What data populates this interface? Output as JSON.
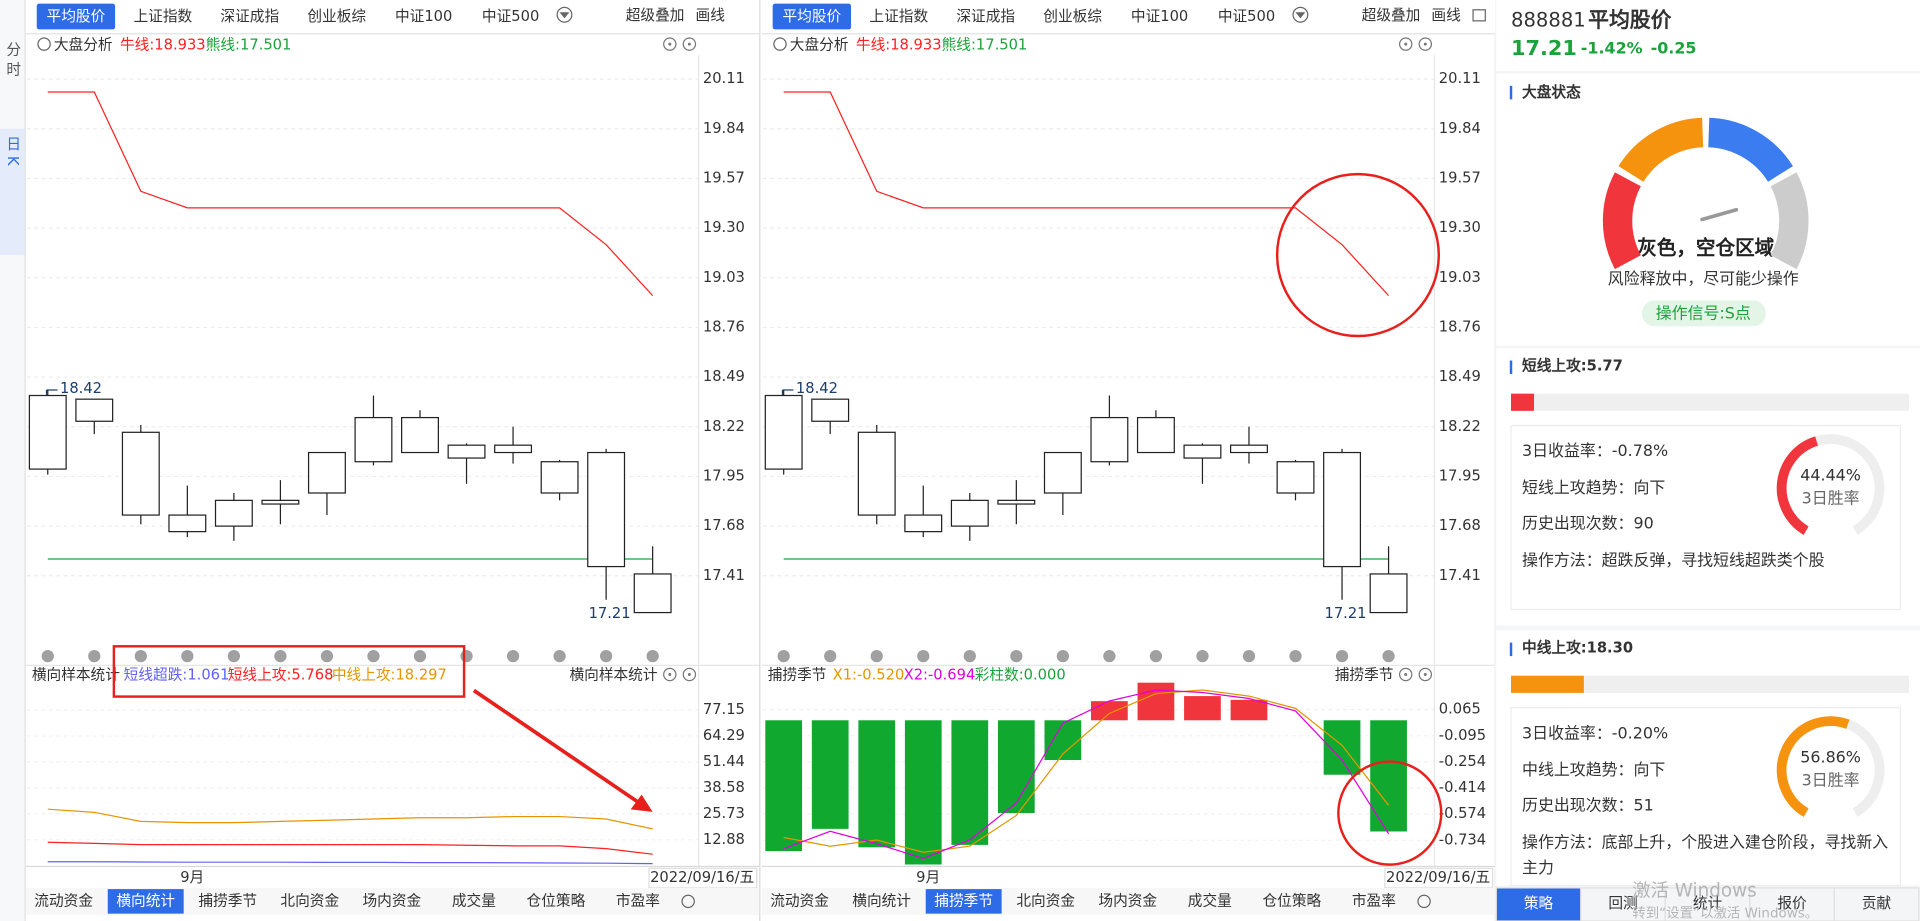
{
  "side_tabs": [
    "分时",
    "日K"
  ],
  "side_active": 1,
  "top_tabs": [
    "平均股价",
    "上证指数",
    "深证成指",
    "创业板综",
    "中证100",
    "中证500"
  ],
  "top_active": 0,
  "top_tools": [
    "超级叠加",
    "画线"
  ],
  "kline": {
    "title": "大盘分析",
    "legend": [
      {
        "text": "牛线:18.933",
        "color": "#ff2020"
      },
      {
        "text": "熊线:17.501",
        "color": "#1aa33b"
      }
    ],
    "ylim": [
      17.04,
      20.24
    ],
    "yticks": [
      20.11,
      19.84,
      19.57,
      {
        "value": 19.3,
        "label": "19.30"
      },
      19.03,
      18.76,
      18.49,
      18.22,
      17.95,
      17.68,
      17.41
    ],
    "grid": true,
    "candle_color": "#222222",
    "candles": [
      {
        "open": 17.99,
        "high": 18.42,
        "low": 17.96,
        "close": 18.39
      },
      {
        "open": 18.25,
        "high": 18.37,
        "low": 18.18,
        "close": 18.37
      },
      {
        "open": 18.19,
        "high": 18.23,
        "low": 17.69,
        "close": 17.74
      },
      {
        "open": 17.65,
        "high": 17.9,
        "low": 17.62,
        "close": 17.74
      },
      {
        "open": 17.68,
        "high": 17.86,
        "low": 17.6,
        "close": 17.82
      },
      {
        "open": 17.8,
        "high": 17.93,
        "low": 17.69,
        "close": 17.82
      },
      {
        "open": 17.86,
        "high": 18.08,
        "low": 17.74,
        "close": 18.08
      },
      {
        "open": 18.03,
        "high": 18.39,
        "low": 18.01,
        "close": 18.27
      },
      {
        "open": 18.27,
        "high": 18.31,
        "low": 18.08,
        "close": 18.08
      },
      {
        "open": 18.12,
        "high": 18.13,
        "low": 17.91,
        "close": 18.05
      },
      {
        "open": 18.08,
        "high": 18.22,
        "low": 18.02,
        "close": 18.12
      },
      {
        "open": 18.03,
        "high": 18.04,
        "low": 17.82,
        "close": 17.86
      },
      {
        "open": 18.08,
        "high": 18.1,
        "low": 17.28,
        "close": 17.46
      },
      {
        "open": 17.42,
        "high": 17.57,
        "low": 17.21,
        "close": 17.21
      }
    ],
    "bull": [
      20.04,
      20.04,
      19.5,
      19.41,
      19.41,
      19.41,
      19.41,
      19.41,
      19.41,
      19.41,
      19.41,
      19.41,
      19.21,
      18.933
    ],
    "bear": [
      17.501,
      17.501,
      17.501,
      17.501,
      17.501,
      17.501,
      17.501,
      17.501,
      17.501,
      17.501,
      17.501,
      17.501,
      17.501,
      17.501
    ]
  },
  "xaxis": {
    "month": "9月",
    "date": "2022/09/16/五"
  },
  "bottom_tabs": [
    "流动资金",
    "横向统计",
    "捕捞季节",
    "北向资金",
    "场内资金",
    "成交量",
    "仓位策略",
    "市盈率"
  ],
  "lower_left": {
    "type": "line",
    "title": "横向样本统计",
    "active_tab": 1,
    "ylim": [
      0,
      87.5
    ],
    "yticks": [
      77.15,
      64.29,
      51.44,
      38.58,
      25.73,
      12.88
    ],
    "series": [
      {
        "name": "短线超跌:1.061",
        "color": "#6060ff",
        "values": [
          2.0,
          2.0,
          1.9,
          1.8,
          1.8,
          1.8,
          1.7,
          1.7,
          1.6,
          1.6,
          1.5,
          1.4,
          1.3,
          1.061
        ]
      },
      {
        "name": "短线上攻:5.768",
        "color": "#ff2020",
        "values": [
          11.7,
          11.1,
          10.5,
          10.5,
          10.5,
          10.5,
          10.5,
          10.5,
          10.5,
          10.2,
          9.9,
          9.9,
          8.5,
          5.768
        ]
      },
      {
        "name": "中线上攻:18.297",
        "color": "#e69500",
        "values": [
          28.06,
          26.5,
          22.0,
          21.39,
          21.39,
          22.0,
          22.6,
          23.2,
          23.8,
          23.8,
          24.4,
          24.4,
          23.2,
          18.297
        ]
      }
    ]
  },
  "lower_right": {
    "type": "bar-line",
    "title": "捕捞季节",
    "active_tab": 2,
    "ylim": [
      -0.89,
      0.19
    ],
    "yticks": [
      0.065,
      -0.095,
      -0.254,
      -0.414,
      -0.574,
      -0.734
    ],
    "legend": [
      {
        "text": "X1:-0.520",
        "color": "#e69500"
      },
      {
        "text": "X2:-0.694",
        "color": "#e000e0"
      },
      {
        "text": "彩柱数:0.000",
        "color": "#1aa33b"
      }
    ],
    "bars": [
      -0.8,
      -0.664,
      -0.777,
      -0.882,
      -0.762,
      -0.567,
      -0.243,
      0.117,
      0.23,
      0.148,
      0.125,
      0,
      -0.333,
      -0.68
    ],
    "up_color": "#f0353c",
    "down_color": "#11a830",
    "series": [
      {
        "name": "X1",
        "color": "#e69500",
        "values": [
          -0.717,
          -0.77,
          -0.732,
          -0.807,
          -0.77,
          -0.582,
          -0.206,
          0.042,
          0.163,
          0.185,
          0.148,
          0.073,
          -0.153,
          -0.52
        ]
      },
      {
        "name": "X2",
        "color": "#e000e0",
        "values": [
          -0.785,
          -0.679,
          -0.755,
          -0.845,
          -0.732,
          -0.506,
          -0.018,
          0.118,
          0.185,
          0.17,
          0.133,
          0.057,
          -0.243,
          -0.694
        ]
      }
    ]
  },
  "quote": {
    "code": "888881",
    "name": "平均股价",
    "price": "17.21",
    "change_pct": "-1.42%",
    "change": "-0.25"
  },
  "market": {
    "title": "大盘状态",
    "state": "灰色，空仓区域",
    "desc": "风险释放中，尽可能少操作",
    "signal": "操作信号:S点"
  },
  "strategies": [
    {
      "title": "短线上攻:5.77",
      "value": 5.77,
      "xlim": [
        0,
        100
      ],
      "color": "#f0353c",
      "rows": [
        "3日收益率：-0.78%",
        "短线上攻趋势：向下",
        "历史出现次数：90",
        "操作方法：超跌反弹，寻找短线超跌类个股"
      ],
      "win_rate": 44.44,
      "win_rate_label": "44.44%",
      "win_rate_caption": "3日胜率"
    },
    {
      "title": "中线上攻:18.30",
      "value": 18.3,
      "xlim": [
        0,
        100
      ],
      "color": "#f5920e",
      "rows": [
        "3日收益率：-0.20%",
        "中线上攻趋势：向下",
        "历史出现次数：51",
        "操作方法：底部上升，个股进入建仓阶段，寻找新入主力"
      ],
      "win_rate": 56.86,
      "win_rate_label": "56.86%",
      "win_rate_caption": "3日胜率"
    }
  ],
  "bottom_nav": [
    "策略",
    "回测",
    "统计",
    "报价",
    "贡献"
  ],
  "nav_active": 0,
  "watermark": [
    "激活 Windows",
    "转到“设置”以激活 Windows。"
  ]
}
